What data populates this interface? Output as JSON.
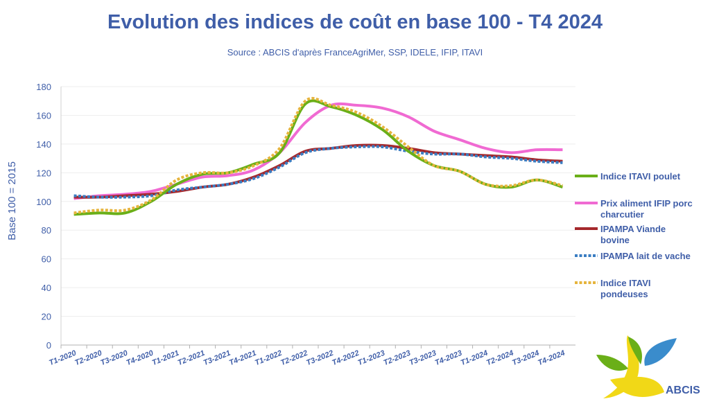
{
  "chart_data": {
    "type": "line",
    "title": "Evolution des indices de coût en base 100 - T4 2024",
    "subtitle": "Source : ABCIS d'après FranceAgriMer, SSP, IDELE, IFIP, ITAVI",
    "ylabel": "Base 100 = 2015",
    "xlabel": "",
    "ylim": [
      0,
      180
    ],
    "yticks": [
      0,
      20,
      40,
      60,
      80,
      100,
      120,
      140,
      160,
      180
    ],
    "categories": [
      "T1-2020",
      "T2-2020",
      "T3-2020",
      "T4-2020",
      "T1-2021",
      "T2-2021",
      "T3-2021",
      "T4-2021",
      "T1-2022",
      "T2-2022",
      "T3-2022",
      "T4-2022",
      "T1-2023",
      "T2-2023",
      "T3-2023",
      "T4-2023",
      "T1-2024",
      "T2-2024",
      "T3-2024",
      "T4-2024"
    ],
    "grid": true,
    "legend_position": "right",
    "series": [
      {
        "name": "Indice ITAVI poulet",
        "color": "#6aaf18",
        "style": "solid",
        "values": [
          91,
          92,
          92,
          100,
          112,
          119,
          120,
          126,
          134,
          168,
          166,
          160,
          150,
          135,
          125,
          121,
          112,
          110,
          115,
          110
        ]
      },
      {
        "name": "Prix aliment IFIP porc charcutier",
        "color": "#f06ad2",
        "style": "solid",
        "values": [
          102,
          104,
          105,
          107,
          112,
          117,
          118,
          122,
          134,
          155,
          167,
          167,
          165,
          159,
          149,
          143,
          137,
          134,
          136,
          136
        ]
      },
      {
        "name": "IPAMPA Viande bovine",
        "color": "#a5282c",
        "style": "solid",
        "values": [
          103,
          103,
          104,
          105,
          107,
          110,
          112,
          117,
          125,
          135,
          137,
          139,
          139,
          137,
          134,
          133,
          132,
          131,
          129,
          128
        ]
      },
      {
        "name": "IPAMPA lait de vache",
        "color": "#3a7dc2",
        "style": "dotted",
        "values": [
          104,
          103,
          103,
          104,
          108,
          110,
          112,
          116,
          124,
          134,
          137,
          138,
          138,
          135,
          133,
          133,
          131,
          130,
          128,
          127
        ]
      },
      {
        "name": "Indice ITAVI pondeuses",
        "color": "#e6b43c",
        "style": "dotted",
        "values": [
          92,
          94,
          94,
          101,
          115,
          120,
          120,
          125,
          137,
          170,
          167,
          162,
          152,
          138,
          125,
          121,
          112,
          111,
          115,
          111
        ]
      }
    ]
  },
  "logo": {
    "text": "ABCIS"
  }
}
